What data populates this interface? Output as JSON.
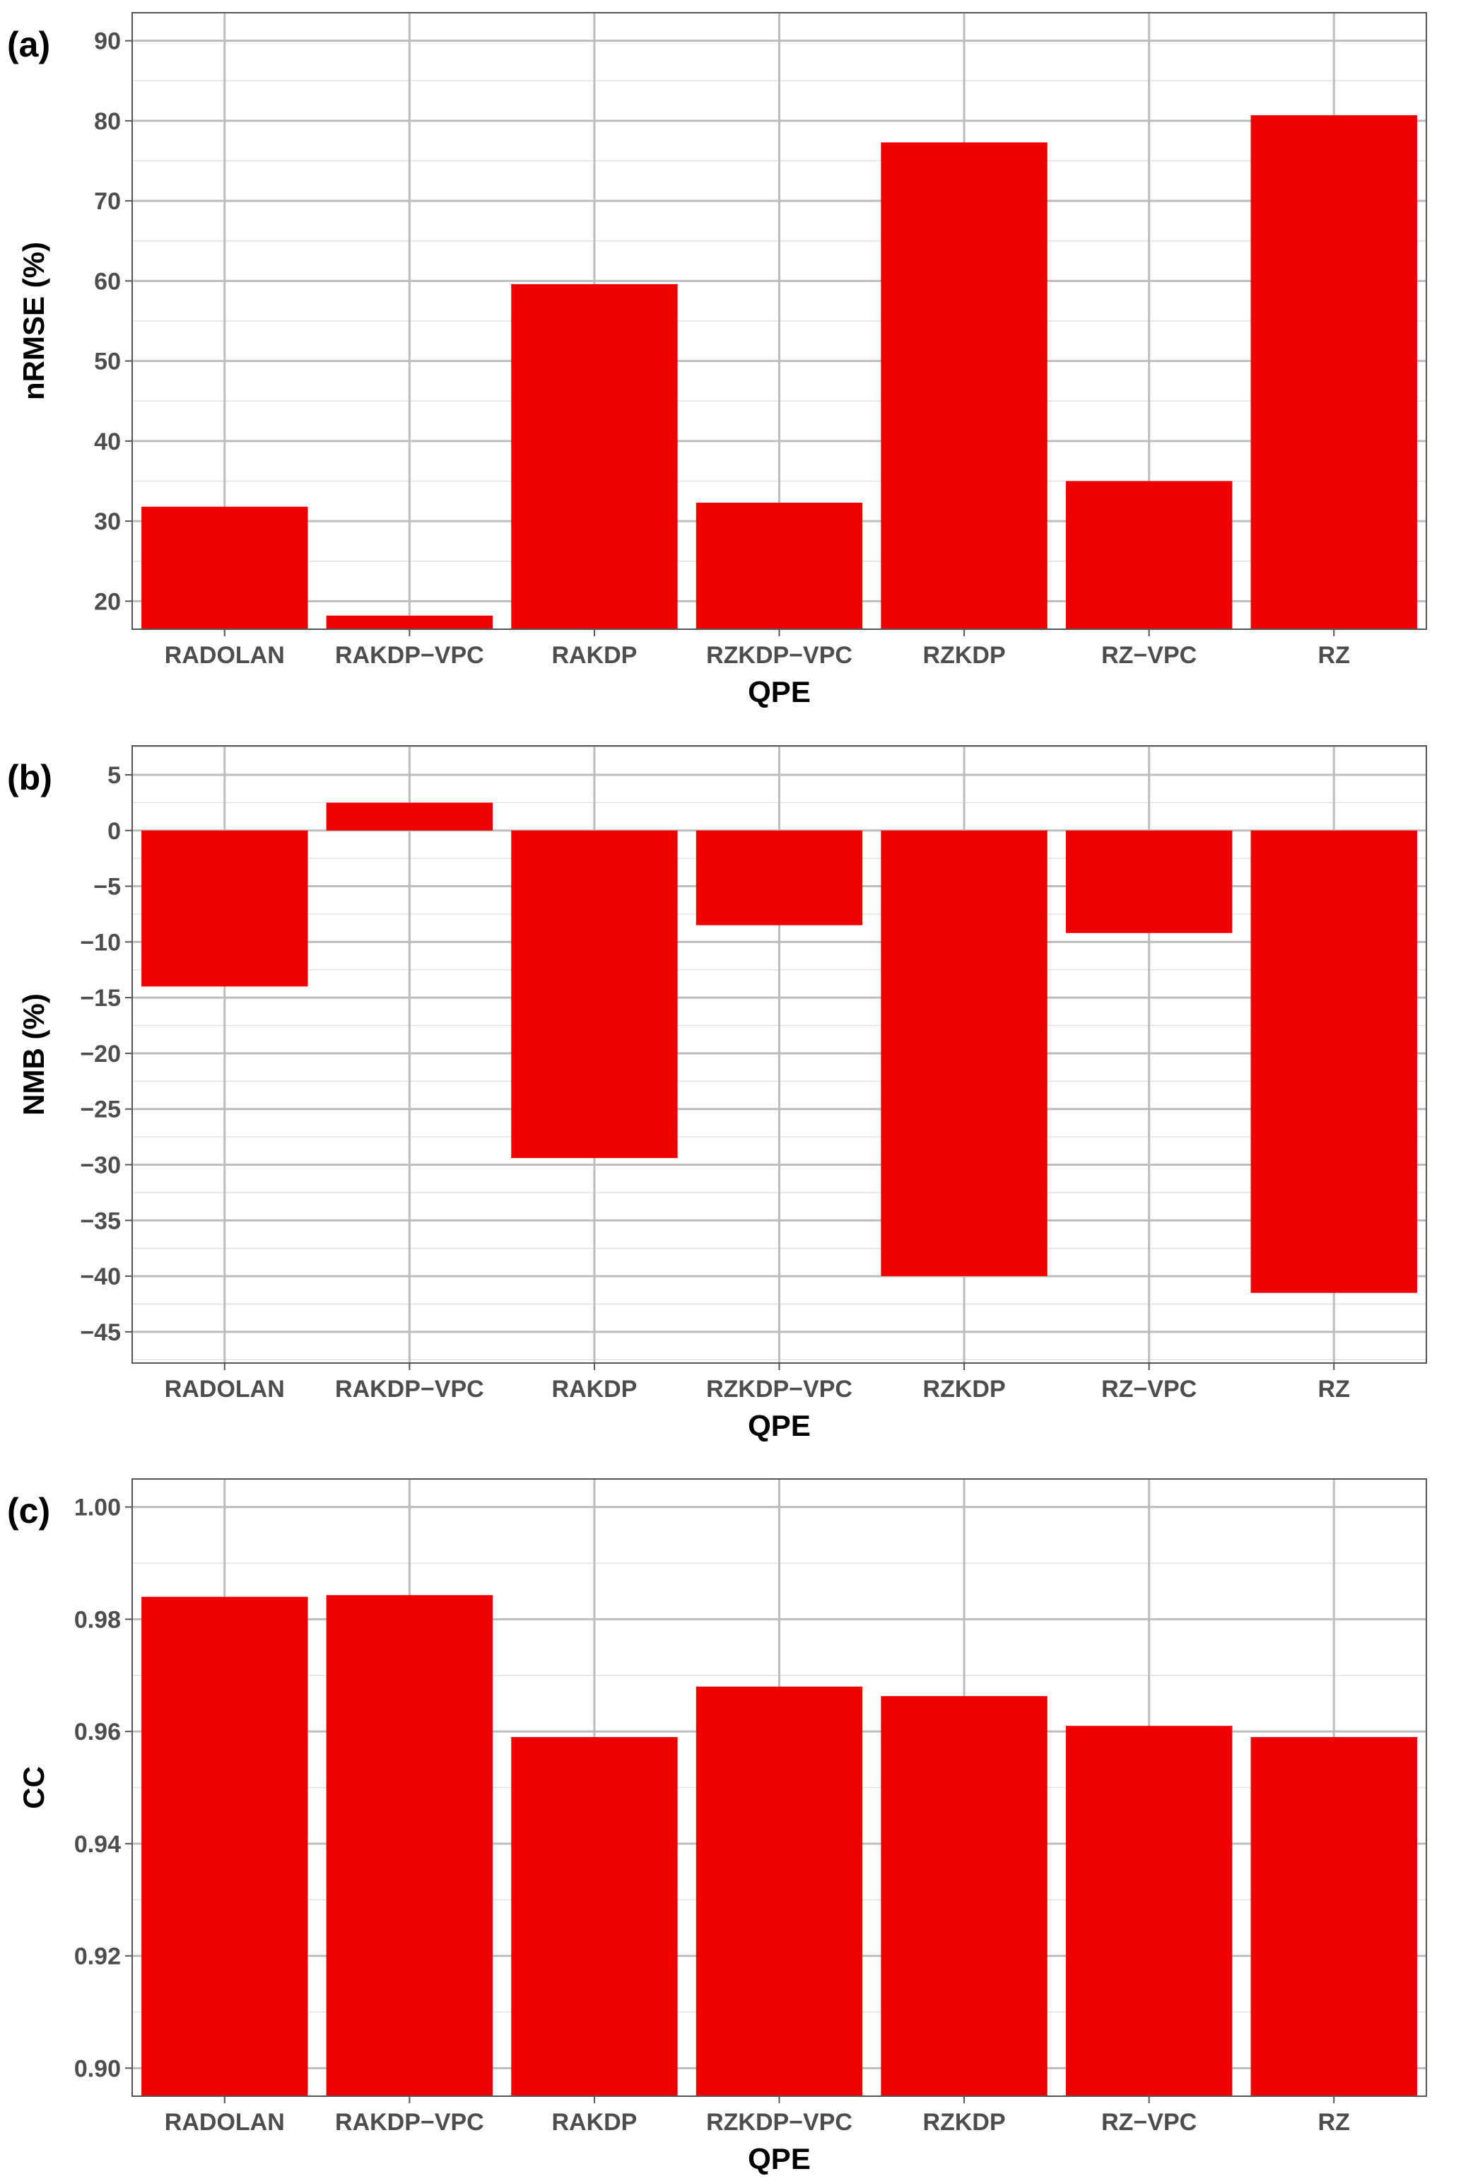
{
  "chart_data": [
    {
      "type": "bar",
      "panel_label": "(a)",
      "categories": [
        "RADOLAN",
        "RAKDP−VPC",
        "RAKDP",
        "RZKDP−VPC",
        "RZKDP",
        "RZ−VPC",
        "RZ"
      ],
      "values": [
        31.8,
        18.2,
        59.6,
        32.3,
        77.3,
        35.0,
        80.7
      ],
      "xlabel": "QPE",
      "ylabel": "nRMSE (%)",
      "ylim": [
        16.5,
        93.5
      ],
      "yticks": [
        20,
        30,
        40,
        50,
        60,
        70,
        80,
        90
      ],
      "bar_color": "#ee0000",
      "grid": true
    },
    {
      "type": "bar",
      "panel_label": "(b)",
      "categories": [
        "RADOLAN",
        "RAKDP−VPC",
        "RAKDP",
        "RZKDP−VPC",
        "RZKDP",
        "RZ−VPC",
        "RZ"
      ],
      "values": [
        -14.0,
        2.5,
        -29.4,
        -8.5,
        -40.0,
        -9.2,
        -41.5
      ],
      "xlabel": "QPE",
      "ylabel": "NMB (%)",
      "ylim": [
        -47.8,
        7.6
      ],
      "yticks": [
        5,
        0,
        -5,
        -10,
        -15,
        -20,
        -25,
        -30,
        -35,
        -40,
        -45
      ],
      "bar_color": "#ee0000",
      "grid": true
    },
    {
      "type": "bar",
      "panel_label": "(c)",
      "categories": [
        "RADOLAN",
        "RAKDP−VPC",
        "RAKDP",
        "RZKDP−VPC",
        "RZKDP",
        "RZ−VPC",
        "RZ"
      ],
      "values": [
        0.984,
        0.9843,
        0.959,
        0.968,
        0.9663,
        0.961,
        0.959
      ],
      "xlabel": "QPE",
      "ylabel": "CC",
      "ylim": [
        0.895,
        1.005
      ],
      "yticks": [
        0.9,
        0.92,
        0.94,
        0.96,
        0.98,
        1.0
      ],
      "tick_format": "0.00",
      "bar_base": 0.895,
      "bar_color": "#ee0000",
      "grid": true
    }
  ]
}
